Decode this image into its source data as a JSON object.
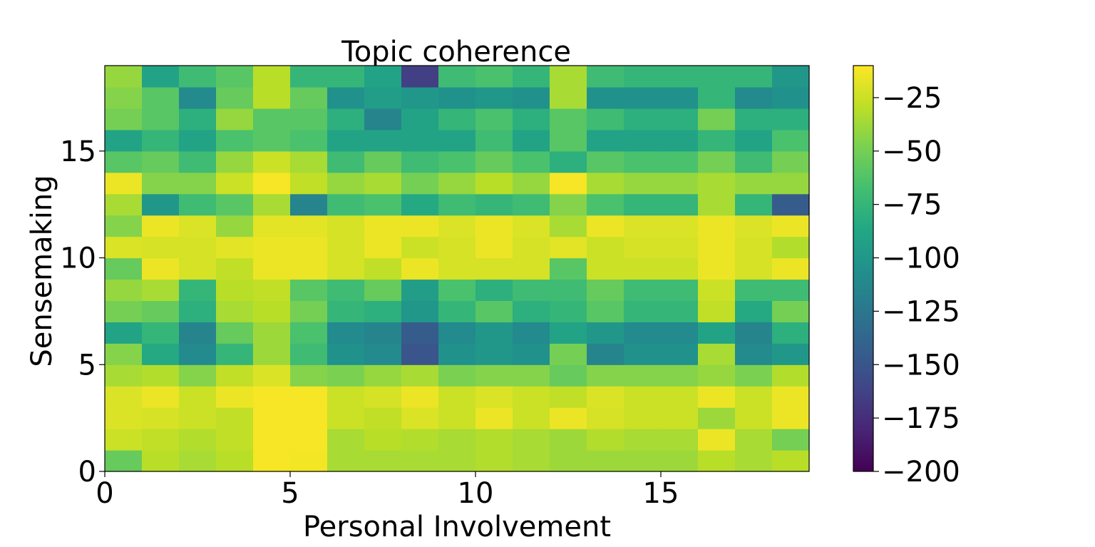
{
  "chart_data": {
    "type": "heatmap",
    "title": "Topic coherence",
    "xlabel": "Personal Involvement",
    "ylabel": "Sensemaking",
    "xlim": [
      0,
      19
    ],
    "ylim": [
      0,
      19
    ],
    "xticks": [
      0,
      5,
      10,
      15
    ],
    "yticks": [
      0,
      5,
      10,
      15
    ],
    "colormap": "viridis",
    "colorbar": {
      "vmin": -200,
      "vmax": -10,
      "ticks": [
        -25,
        -50,
        -75,
        -100,
        -125,
        -150,
        -175,
        -200
      ],
      "tick_labels": [
        "−25",
        "−50",
        "−75",
        "−100",
        "−125",
        "−150",
        "−175",
        "−200"
      ]
    },
    "rows_bottom_to_top": [
      [
        -55,
        -30,
        -35,
        -30,
        -12,
        -13,
        -35,
        -35,
        -35,
        -35,
        -32,
        -35,
        -38,
        -38,
        -38,
        -38,
        -30,
        -35,
        -30
      ],
      [
        -25,
        -28,
        -32,
        -28,
        -12,
        -12,
        -35,
        -30,
        -32,
        -35,
        -32,
        -35,
        -38,
        -32,
        -35,
        -35,
        -15,
        -35,
        -50
      ],
      [
        -20,
        -22,
        -25,
        -28,
        -12,
        -12,
        -25,
        -28,
        -20,
        -25,
        -15,
        -25,
        -15,
        -22,
        -25,
        -25,
        -38,
        -25,
        -15
      ],
      [
        -20,
        -15,
        -25,
        -15,
        -12,
        -12,
        -25,
        -22,
        -15,
        -25,
        -20,
        -25,
        -28,
        -20,
        -25,
        -25,
        -15,
        -25,
        -15
      ],
      [
        -35,
        -32,
        -45,
        -28,
        -20,
        -45,
        -48,
        -40,
        -35,
        -48,
        -45,
        -45,
        -55,
        -45,
        -45,
        -45,
        -40,
        -48,
        -32
      ],
      [
        -45,
        -85,
        -110,
        -75,
        -38,
        -70,
        -105,
        -110,
        -150,
        -105,
        -100,
        -105,
        -50,
        -115,
        -105,
        -105,
        -35,
        -110,
        -100
      ],
      [
        -90,
        -75,
        -115,
        -55,
        -38,
        -65,
        -110,
        -115,
        -145,
        -110,
        -100,
        -110,
        -90,
        -100,
        -110,
        -110,
        -90,
        -115,
        -80
      ],
      [
        -50,
        -55,
        -80,
        -35,
        -30,
        -50,
        -75,
        -80,
        -100,
        -75,
        -60,
        -80,
        -75,
        -60,
        -75,
        -75,
        -28,
        -85,
        -50
      ],
      [
        -40,
        -35,
        -75,
        -30,
        -28,
        -60,
        -70,
        -55,
        -95,
        -65,
        -80,
        -70,
        -70,
        -55,
        -70,
        -70,
        -25,
        -70,
        -70
      ],
      [
        -55,
        -15,
        -22,
        -28,
        -15,
        -15,
        -22,
        -28,
        -15,
        -22,
        -22,
        -22,
        -60,
        -25,
        -25,
        -25,
        -15,
        -22,
        -15
      ],
      [
        -20,
        -22,
        -22,
        -18,
        -15,
        -15,
        -22,
        -15,
        -25,
        -22,
        -15,
        -22,
        -18,
        -25,
        -22,
        -22,
        -15,
        -22,
        -32
      ],
      [
        -45,
        -15,
        -20,
        -40,
        -18,
        -18,
        -22,
        -15,
        -15,
        -20,
        -15,
        -20,
        -35,
        -15,
        -20,
        -20,
        -15,
        -20,
        -15
      ],
      [
        -35,
        -100,
        -70,
        -60,
        -35,
        -115,
        -70,
        -65,
        -85,
        -70,
        -75,
        -70,
        -45,
        -65,
        -75,
        -75,
        -35,
        -75,
        -145
      ],
      [
        -15,
        -45,
        -45,
        -25,
        -12,
        -28,
        -40,
        -35,
        -50,
        -40,
        -30,
        -40,
        -12,
        -35,
        -40,
        -40,
        -35,
        -40,
        -40
      ],
      [
        -60,
        -55,
        -70,
        -40,
        -25,
        -35,
        -70,
        -55,
        -70,
        -65,
        -55,
        -65,
        -80,
        -60,
        -65,
        -65,
        -50,
        -70,
        -50
      ],
      [
        -90,
        -75,
        -90,
        -65,
        -60,
        -65,
        -90,
        -90,
        -90,
        -90,
        -70,
        -90,
        -60,
        -90,
        -90,
        -90,
        -75,
        -90,
        -65
      ],
      [
        -50,
        -60,
        -80,
        -40,
        -60,
        -60,
        -80,
        -115,
        -90,
        -75,
        -65,
        -80,
        -60,
        -70,
        -80,
        -80,
        -50,
        -80,
        -80
      ],
      [
        -45,
        -60,
        -110,
        -55,
        -30,
        -55,
        -105,
        -95,
        -100,
        -105,
        -100,
        -105,
        -35,
        -105,
        -105,
        -105,
        -75,
        -110,
        -105
      ],
      [
        -40,
        -90,
        -70,
        -60,
        -30,
        -75,
        -75,
        -90,
        -165,
        -70,
        -65,
        -75,
        -35,
        -70,
        -75,
        -75,
        -75,
        -75,
        -100
      ]
    ]
  }
}
